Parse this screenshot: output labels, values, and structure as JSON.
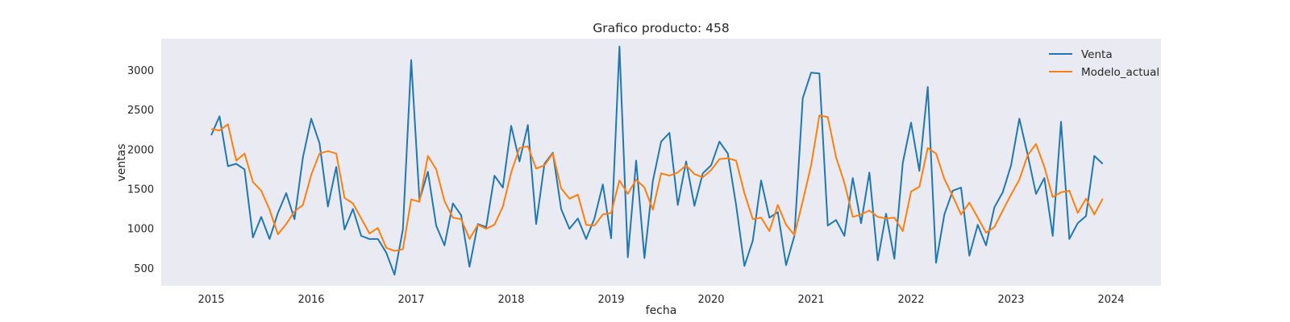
{
  "chart_data": {
    "type": "line",
    "title": "Grafico producto: 458",
    "xlabel": "fecha",
    "ylabel": "ventas",
    "x_start": "2015-01",
    "x_frequency": "monthly",
    "xticks": [
      "2015",
      "2016",
      "2017",
      "2018",
      "2019",
      "2020",
      "2021",
      "2022",
      "2023",
      "2024"
    ],
    "yticks": [
      500,
      1000,
      1500,
      2000,
      2500,
      3000
    ],
    "xlim": [
      "2014-07",
      "2024-07"
    ],
    "ylim": [
      280,
      3400
    ],
    "grid": false,
    "background": "#eaeaf2",
    "legend_position": "top-right",
    "series": [
      {
        "name": "Venta",
        "color": "#1f77b4",
        "values": [
          2180,
          2420,
          1790,
          1820,
          1750,
          890,
          1150,
          870,
          1200,
          1450,
          1120,
          1900,
          2390,
          2080,
          1280,
          1780,
          990,
          1250,
          910,
          870,
          870,
          700,
          420,
          990,
          3130,
          1360,
          1720,
          1040,
          790,
          1320,
          1170,
          520,
          1060,
          1020,
          1670,
          1520,
          2300,
          1850,
          2310,
          1060,
          1820,
          1960,
          1250,
          1000,
          1130,
          870,
          1130,
          1560,
          880,
          3300,
          640,
          1860,
          630,
          1600,
          2100,
          2210,
          1300,
          1850,
          1290,
          1700,
          1800,
          2100,
          1950,
          1300,
          530,
          850,
          1610,
          1140,
          1210,
          540,
          910,
          2650,
          2970,
          2960,
          1040,
          1110,
          910,
          1640,
          1070,
          1710,
          600,
          1190,
          620,
          1830,
          2340,
          1730,
          2790,
          570,
          1180,
          1480,
          1520,
          660,
          1050,
          790,
          1270,
          1460,
          1800,
          2390,
          1930,
          1440,
          1640,
          910,
          2350,
          870,
          1070,
          1160,
          1920,
          1820
        ]
      },
      {
        "name": "Modelo_actual",
        "color": "#ff7f0e",
        "values": [
          2260,
          2240,
          2320,
          1860,
          1950,
          1590,
          1480,
          1240,
          930,
          1060,
          1220,
          1300,
          1680,
          1950,
          1980,
          1950,
          1390,
          1320,
          1130,
          940,
          1010,
          760,
          720,
          740,
          1370,
          1340,
          1920,
          1750,
          1350,
          1140,
          1120,
          870,
          1050,
          1000,
          1050,
          1280,
          1710,
          2020,
          2040,
          1760,
          1800,
          1950,
          1510,
          1380,
          1430,
          1050,
          1040,
          1180,
          1200,
          1610,
          1440,
          1620,
          1520,
          1240,
          1700,
          1670,
          1710,
          1800,
          1690,
          1650,
          1740,
          1880,
          1890,
          1860,
          1450,
          1120,
          1140,
          970,
          1300,
          1050,
          920,
          1350,
          1800,
          2430,
          2410,
          1900,
          1580,
          1150,
          1180,
          1230,
          1150,
          1130,
          1140,
          970,
          1470,
          1530,
          2020,
          1950,
          1630,
          1410,
          1180,
          1330,
          1140,
          950,
          1020,
          1230,
          1430,
          1620,
          1930,
          2070,
          1780,
          1400,
          1460,
          1480,
          1200,
          1380,
          1180,
          1380
        ]
      }
    ]
  }
}
